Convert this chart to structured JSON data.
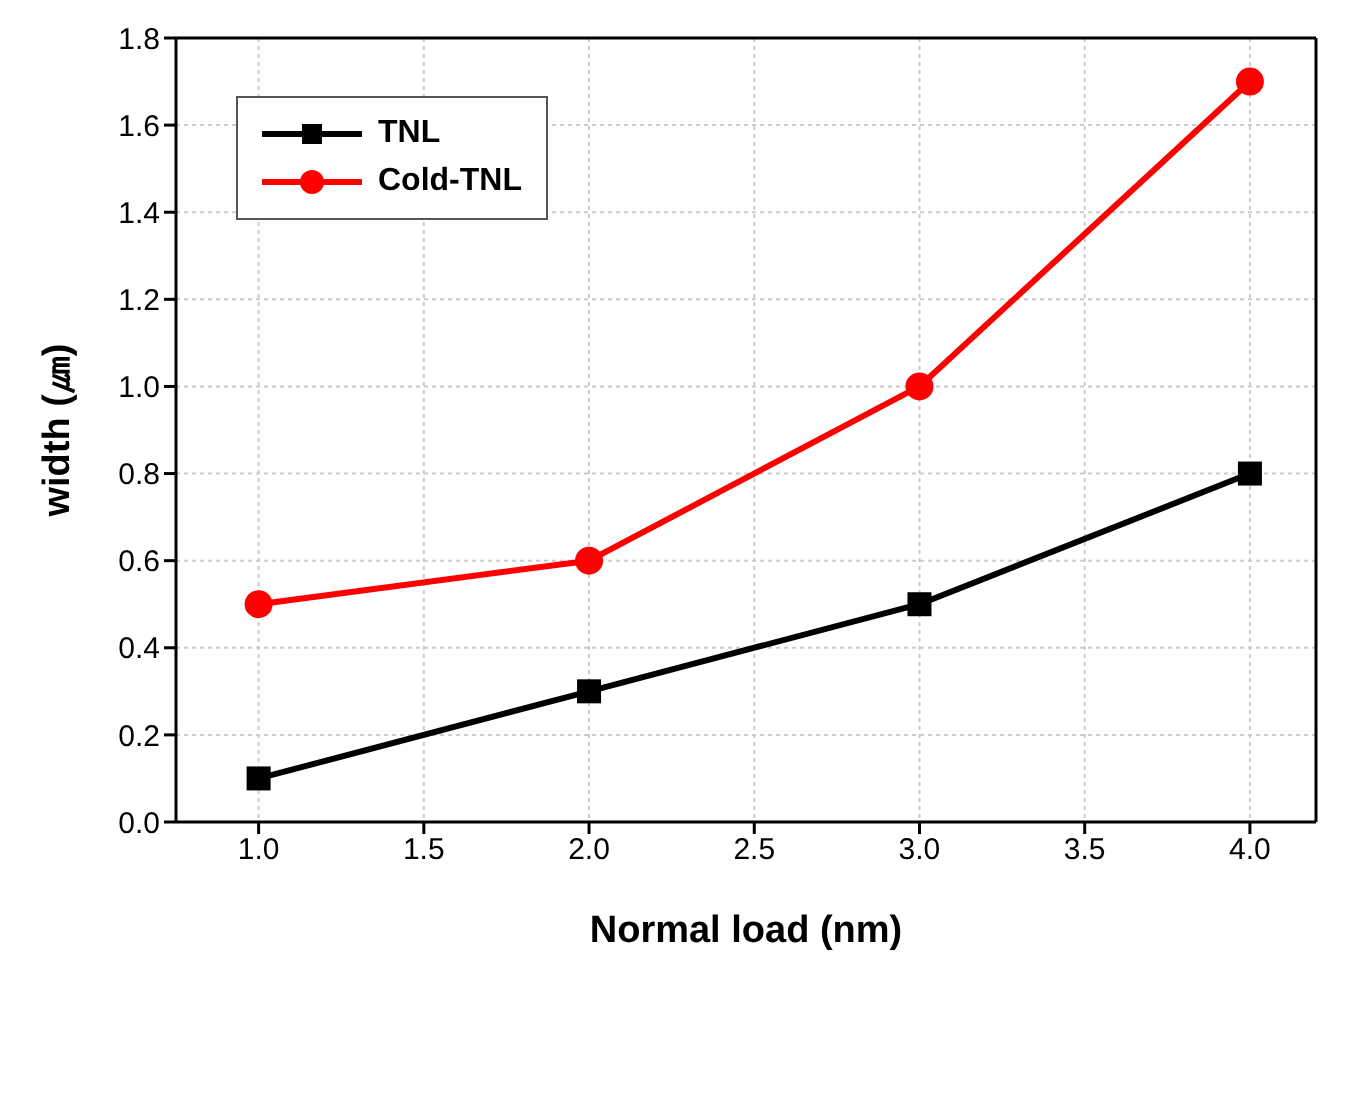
{
  "chart_data": {
    "type": "line",
    "xlabel": "Normal load (nm)",
    "ylabel": "width (㎛)",
    "x": [
      1.0,
      2.0,
      3.0,
      4.0
    ],
    "series": [
      {
        "name": "TNL",
        "color": "#000000",
        "marker": "square",
        "values": [
          0.1,
          0.3,
          0.5,
          0.8
        ]
      },
      {
        "name": "Cold-TNL",
        "color": "#ff0000",
        "marker": "circle",
        "values": [
          0.5,
          0.6,
          1.0,
          1.7
        ]
      }
    ],
    "xlim": [
      0.75,
      4.2
    ],
    "xticks": [
      {
        "value": 1,
        "label": "1.0"
      },
      {
        "value": 1.5,
        "label": "1.5"
      },
      {
        "value": 2,
        "label": "2.0"
      },
      {
        "value": 2.5,
        "label": "2.5"
      },
      {
        "value": 3,
        "label": "3.0"
      },
      {
        "value": 3.5,
        "label": "3.5"
      },
      {
        "value": 4,
        "label": "4.0"
      }
    ],
    "ylim": [
      0,
      1.8
    ],
    "yticks": [
      {
        "value": 0,
        "label": "0.0"
      },
      {
        "value": 0.2,
        "label": "0.2"
      },
      {
        "value": 0.4,
        "label": "0.4"
      },
      {
        "value": 0.6,
        "label": "0.6"
      },
      {
        "value": 0.8,
        "label": "0.8"
      },
      {
        "value": 1,
        "label": "1.0"
      },
      {
        "value": 1.2,
        "label": "1.2"
      },
      {
        "value": 1.4,
        "label": "1.4"
      },
      {
        "value": 1.6,
        "label": "1.6"
      },
      {
        "value": 1.8,
        "label": "1.8"
      }
    ],
    "grid": true,
    "legend": "top left",
    "line_style": "solid"
  }
}
